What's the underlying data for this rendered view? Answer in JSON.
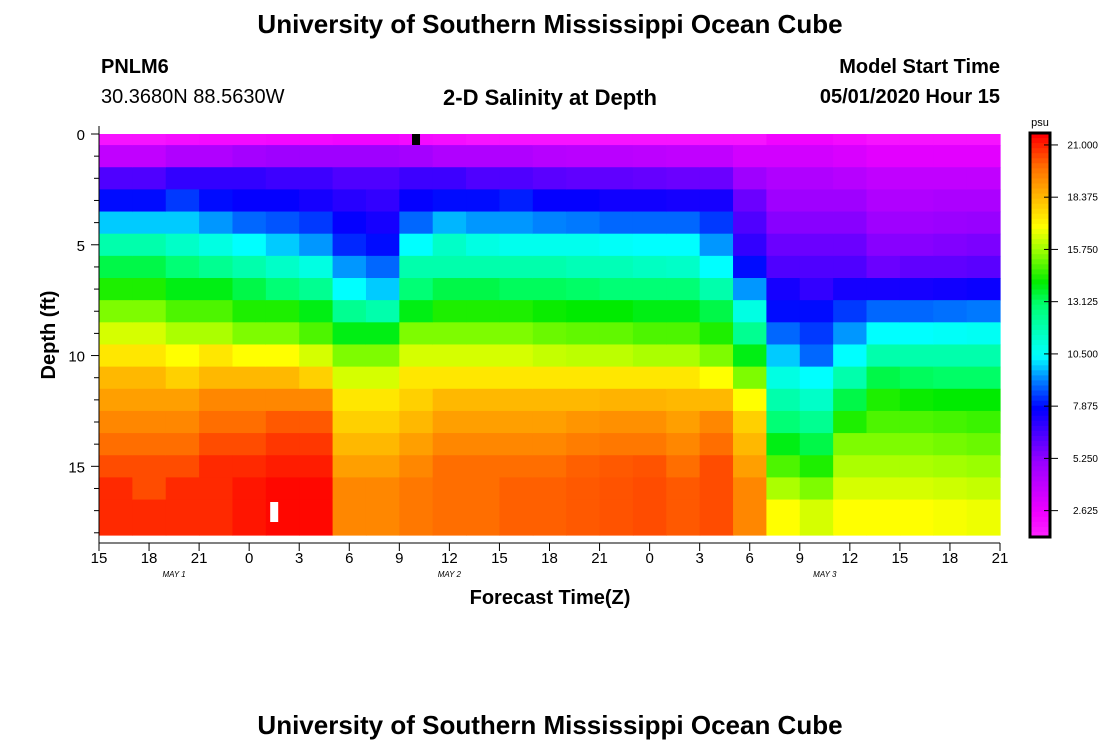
{
  "header": {
    "title": "University of Southern Mississippi Ocean Cube",
    "station": "PNLM6",
    "coords": "30.3680N 88.5630W",
    "plot_title": "2-D Salinity at Depth",
    "model_start_label": "Model Start Time",
    "model_start_value": "05/01/2020 Hour 15",
    "footer_title": "University of Southern Mississippi Ocean Cube"
  },
  "chart_data": {
    "type": "heatmap",
    "title": "2-D Salinity at Depth",
    "xlabel": "Forecast Time(Z)",
    "ylabel": "Depth (ft)",
    "x_unit": "hours since 05/01/2020 15Z",
    "x_range": [
      0,
      54
    ],
    "y_range": [
      0,
      18.1
    ],
    "y_inverted": true,
    "x_tick_labels": [
      "15",
      "18",
      "21",
      "0",
      "3",
      "6",
      "9",
      "12",
      "15",
      "18",
      "21",
      "0",
      "3",
      "6",
      "9",
      "12",
      "15",
      "18",
      "21"
    ],
    "y_ticks": [
      0,
      5,
      10,
      15
    ],
    "date_labels": [
      {
        "text": "MAY 1",
        "hour": 4.5
      },
      {
        "text": "MAY 2",
        "hour": 21
      },
      {
        "text": "MAY 3",
        "hour": 43.5
      }
    ],
    "colorbar": {
      "unit": "psu",
      "ticks": [
        "21.000",
        "18.375",
        "15.750",
        "13.125",
        "10.500",
        "7.875",
        "5.250",
        "2.625"
      ],
      "range": [
        1.3,
        21.6
      ]
    },
    "column_hours": 2,
    "depth_levels_ft": [
      0,
      1,
      2,
      3,
      4,
      5,
      6,
      7,
      8,
      9,
      10,
      11,
      12,
      13,
      14,
      15,
      16,
      17
    ],
    "salinity_psu": [
      [
        2,
        4,
        6.5,
        8,
        10,
        12,
        13.5,
        14.5,
        15.5,
        16.5,
        17.5,
        18.5,
        19,
        19.5,
        20,
        20.5,
        21,
        21
      ],
      [
        2,
        4,
        6.5,
        8,
        10,
        12,
        13.5,
        14.5,
        15.5,
        16.5,
        17.5,
        18.5,
        19,
        19.5,
        20,
        20.5,
        20.5,
        21
      ],
      [
        2.2,
        4.5,
        7,
        8.5,
        10,
        11.5,
        13,
        14,
        15,
        16,
        17,
        18,
        19,
        19.5,
        20,
        20.5,
        21,
        21
      ],
      [
        2.3,
        4.5,
        7,
        8,
        9.5,
        11,
        12.5,
        14,
        15,
        16,
        17.5,
        18.5,
        19.5,
        20,
        20.5,
        21,
        21,
        21
      ],
      [
        2.3,
        4.8,
        7,
        7.8,
        9,
        10.5,
        12,
        13.5,
        14.5,
        15.5,
        17,
        18.5,
        19.5,
        20,
        20.5,
        21,
        21.3,
        21.3
      ],
      [
        2.4,
        5,
        6.8,
        7.8,
        8.8,
        10,
        11.5,
        13,
        14.5,
        15.5,
        17,
        18.5,
        19.5,
        20.3,
        20.8,
        21.2,
        21.5,
        21.5
      ],
      [
        2.4,
        5,
        6.8,
        7.5,
        8.5,
        9.5,
        11,
        12.5,
        14,
        15,
        16.5,
        18,
        19.5,
        20.3,
        20.8,
        21.2,
        21.5,
        21.5
      ],
      [
        2.5,
        5,
        6.5,
        7.2,
        7.8,
        8.3,
        9.5,
        10.5,
        12.5,
        14,
        15.5,
        16.5,
        17.5,
        18,
        18.5,
        19,
        19.5,
        19.5
      ],
      [
        2.5,
        5,
        6.5,
        7,
        7.5,
        8,
        9,
        10,
        12,
        14,
        15.5,
        16.5,
        17.5,
        18,
        18.5,
        19,
        19.5,
        19.5
      ],
      [
        2.3,
        4.8,
        6.8,
        7.8,
        9,
        10.5,
        12,
        13,
        14,
        15.5,
        16.5,
        17.5,
        18,
        18.5,
        19,
        19.5,
        19.8,
        19.8
      ],
      [
        2.2,
        4.5,
        6.8,
        8,
        9.8,
        11.5,
        12,
        13.5,
        14.5,
        15.5,
        16.5,
        17.5,
        18.5,
        19,
        19.5,
        20,
        20,
        20
      ],
      [
        2,
        4.5,
        6.5,
        8,
        9.5,
        11,
        12,
        13.5,
        14.5,
        15.5,
        16.5,
        17.5,
        18.5,
        19,
        19.5,
        20,
        20,
        20
      ],
      [
        2,
        4.5,
        6.5,
        8.2,
        9.5,
        10.8,
        12,
        13.3,
        14.5,
        15.5,
        16.5,
        17.5,
        18.5,
        19,
        19.5,
        20,
        20.2,
        20.2
      ],
      [
        2,
        4.3,
        6.3,
        7.8,
        9.3,
        10.8,
        12,
        13.3,
        14.3,
        15.3,
        16.3,
        17.5,
        18.5,
        19,
        19.5,
        20,
        20.2,
        20.2
      ],
      [
        2,
        4.2,
        6.2,
        7.8,
        9.2,
        10.8,
        11.8,
        13.2,
        14.2,
        15.2,
        16.2,
        17.5,
        18.5,
        19.2,
        19.7,
        20.2,
        20.3,
        20.3
      ],
      [
        2,
        4.2,
        6.2,
        7.6,
        9,
        10.6,
        11.8,
        13,
        14.2,
        15.2,
        16.2,
        17.5,
        18.6,
        19.3,
        19.8,
        20.3,
        20.4,
        20.4
      ],
      [
        2,
        4.1,
        6.1,
        7.6,
        9,
        10.5,
        11.6,
        13,
        14,
        15,
        16,
        17.5,
        18.6,
        19.3,
        19.8,
        20.4,
        20.5,
        20.5
      ],
      [
        2,
        4,
        6,
        7.5,
        9,
        10.5,
        11.5,
        13,
        14,
        15,
        16,
        17.5,
        18.5,
        19,
        19.5,
        20,
        20.3,
        20.3
      ],
      [
        2,
        4,
        6,
        7.5,
        8.5,
        9.5,
        10.5,
        12,
        13.5,
        14.5,
        15.5,
        17,
        18.5,
        19.5,
        20,
        20.5,
        20.5,
        20.5
      ],
      [
        2,
        3.5,
        5,
        6,
        6.5,
        7,
        8,
        9.5,
        11,
        12.5,
        14,
        15.5,
        17,
        18,
        18.5,
        19,
        19.5,
        19.5
      ],
      [
        2.5,
        3.5,
        4.5,
        5,
        5.5,
        6,
        6.5,
        7.5,
        8,
        9,
        10,
        11,
        12,
        13,
        14,
        15,
        16,
        17
      ],
      [
        2.5,
        3.5,
        4.5,
        5,
        5.5,
        6,
        6.5,
        7,
        8,
        8.5,
        9,
        10.5,
        11.5,
        12.5,
        13.5,
        14.5,
        15.5,
        16.5
      ],
      [
        2.3,
        3.3,
        4.3,
        5,
        5.5,
        6,
        6.5,
        7.5,
        8.5,
        9.5,
        10.5,
        12,
        13.5,
        14.5,
        15.5,
        16,
        16.5,
        17
      ],
      [
        2,
        3,
        4,
        4.5,
        5,
        5.5,
        6,
        7.5,
        9,
        10.5,
        12,
        13.5,
        14.5,
        15,
        15.5,
        16,
        16.5,
        17
      ],
      [
        2,
        3,
        4,
        4.5,
        5,
        5.5,
        6.2,
        7.5,
        9,
        10.5,
        12,
        13.3,
        14.3,
        15,
        15.5,
        16,
        16.5,
        17
      ],
      [
        2,
        3,
        4,
        4.6,
        5.1,
        5.6,
        6.2,
        7.6,
        9.1,
        10.6,
        12,
        13.2,
        14.2,
        14.9,
        15.4,
        15.9,
        16.4,
        16.9
      ],
      [
        2,
        3,
        4,
        4.6,
        5.2,
        5.7,
        6.3,
        7.7,
        9.2,
        10.7,
        12,
        13.2,
        14.2,
        14.8,
        15.3,
        15.8,
        16.3,
        16.8
      ]
    ],
    "markers": [
      {
        "type": "top-marker",
        "hour": 19
      },
      {
        "type": "bottom-marker",
        "hour": 10.5
      }
    ]
  }
}
